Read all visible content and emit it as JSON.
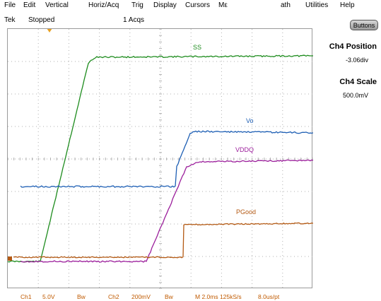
{
  "menu": {
    "items": [
      {
        "label": "File"
      },
      {
        "label": "Edit"
      },
      {
        "label": "Vertical"
      },
      {
        "label": "Horiz/Acq"
      },
      {
        "label": "Trig"
      },
      {
        "label": "Display"
      },
      {
        "label": "Cursors"
      },
      {
        "label": "Mε"
      },
      {
        "label": "ath"
      },
      {
        "label": "Utilities"
      },
      {
        "label": "Help"
      }
    ]
  },
  "status": {
    "brand": "Tek",
    "state": "Stopped",
    "acqs": "1 Acqs"
  },
  "buttons_label": "Buttons",
  "side_panel": {
    "position_title": "Ch4 Position",
    "position_value": "-3.06div",
    "scale_title": "Ch4 Scale",
    "scale_value": "500.0mV"
  },
  "traces": [
    {
      "name": "SS",
      "color": "#1e8c1e"
    },
    {
      "name": "Vo",
      "color": "#1e5fb4"
    },
    {
      "name": "VDDQ",
      "color": "#9b1e9b"
    },
    {
      "name": "PGood",
      "color": "#b45a14"
    }
  ],
  "bottom": {
    "ch1": "Ch1",
    "ch1_scale": "5.0V",
    "ch1_bw": "Bw",
    "ch2": "Ch2",
    "ch2_scale": "200mV",
    "ch2_bw": "Bw",
    "timebase": "M 2.0ms 125kS/s",
    "pt": "8.0us/pt"
  },
  "colors": {
    "grid": "#b0b0b0",
    "bottom_text": "#c05a00",
    "trigger_marker": "#e8a020"
  }
}
